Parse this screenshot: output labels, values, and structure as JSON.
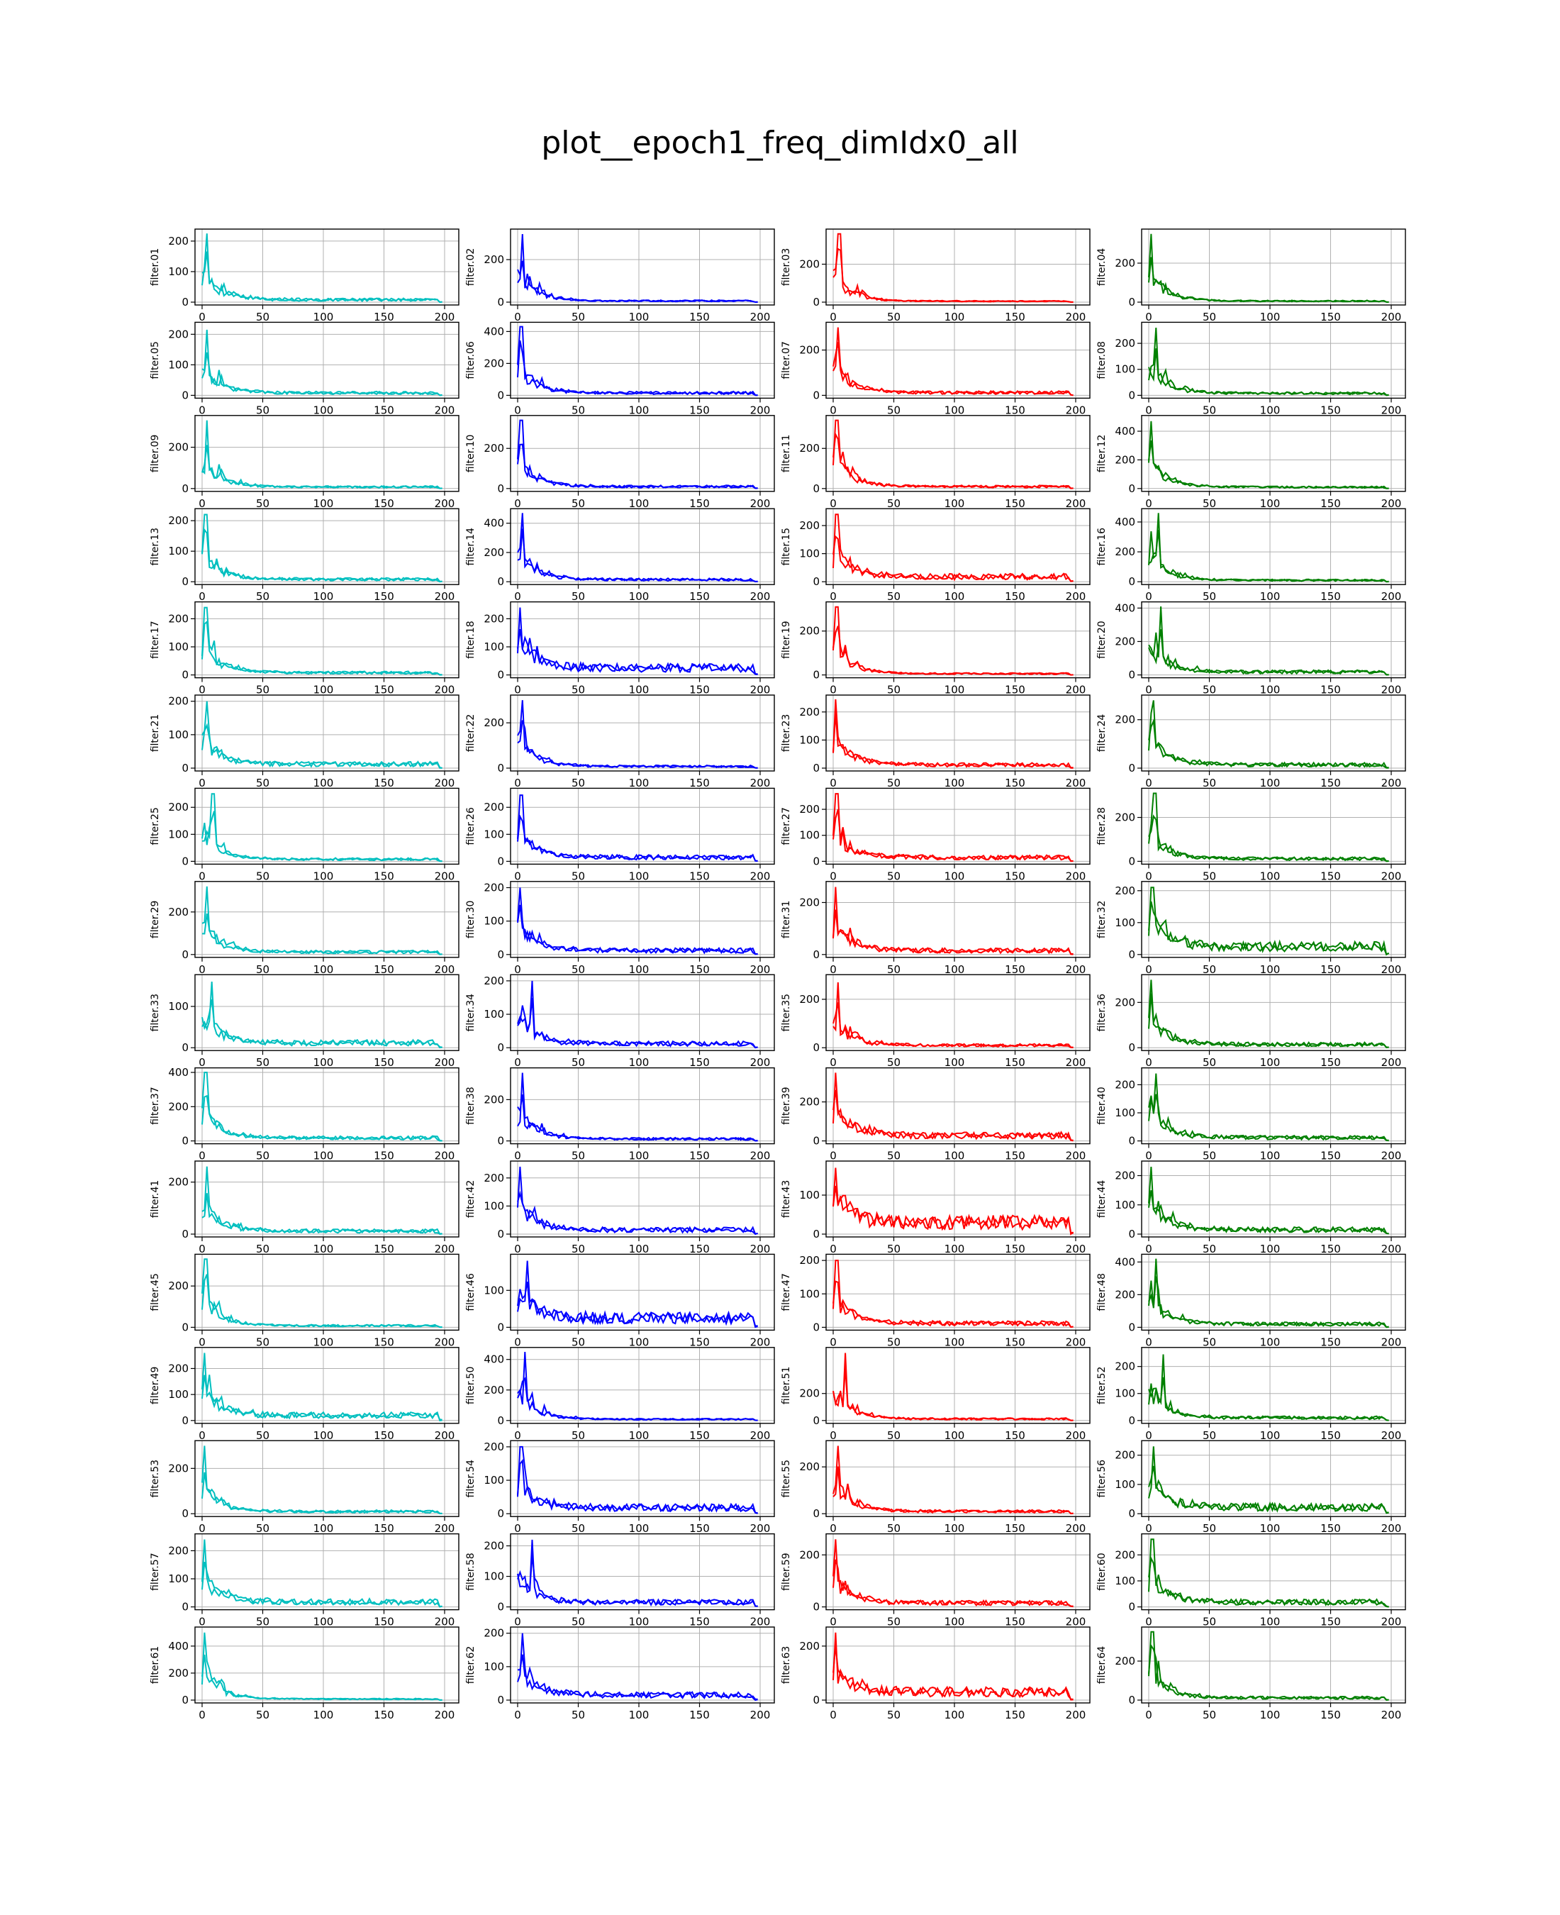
{
  "title": "plot__epoch1_freq_dimIdx0_all",
  "chart_data": {
    "type": "line",
    "title": "plot__epoch1_freq_dimIdx0_all",
    "x_range": [
      0,
      200
    ],
    "x_ticks": [
      0,
      50,
      100,
      150,
      200
    ],
    "grid": true,
    "layout": "16 rows x 4 columns",
    "column_colors": [
      "#00bfbf",
      "#0000ff",
      "#ff0000",
      "#008000"
    ],
    "series_per_panel": 2,
    "panels": [
      {
        "label": "filter.01",
        "ylim": [
          0,
          230
        ],
        "yticks": [
          0,
          100,
          200
        ],
        "peak": 225,
        "peak_at": 4,
        "tail": 8
      },
      {
        "label": "filter.02",
        "ylim": [
          0,
          330
        ],
        "yticks": [
          0,
          200
        ],
        "peak": 320,
        "peak_at": 4,
        "tail": 6
      },
      {
        "label": "filter.03",
        "ylim": [
          0,
          370
        ],
        "yticks": [
          0,
          200
        ],
        "peak": 360,
        "peak_at": 5,
        "tail": 5
      },
      {
        "label": "filter.04",
        "ylim": [
          0,
          360
        ],
        "yticks": [
          0,
          200
        ],
        "peak": 350,
        "peak_at": 2,
        "tail": 6
      },
      {
        "label": "filter.05",
        "ylim": [
          0,
          230
        ],
        "yticks": [
          0,
          100,
          200
        ],
        "peak": 215,
        "peak_at": 4,
        "tail": 8
      },
      {
        "label": "filter.06",
        "ylim": [
          0,
          440
        ],
        "yticks": [
          0,
          200,
          400
        ],
        "peak": 430,
        "peak_at": 3,
        "tail": 15
      },
      {
        "label": "filter.07",
        "ylim": [
          0,
          310
        ],
        "yticks": [
          0,
          200
        ],
        "peak": 300,
        "peak_at": 4,
        "tail": 12
      },
      {
        "label": "filter.08",
        "ylim": [
          0,
          270
        ],
        "yticks": [
          0,
          100,
          200
        ],
        "peak": 260,
        "peak_at": 6,
        "tail": 8
      },
      {
        "label": "filter.09",
        "ylim": [
          0,
          340
        ],
        "yticks": [
          0,
          200
        ],
        "peak": 330,
        "peak_at": 4,
        "tail": 8
      },
      {
        "label": "filter.10",
        "ylim": [
          0,
          350
        ],
        "yticks": [
          0,
          200
        ],
        "peak": 340,
        "peak_at": 3,
        "tail": 10
      },
      {
        "label": "filter.11",
        "ylim": [
          0,
          350
        ],
        "yticks": [
          0,
          200
        ],
        "peak": 340,
        "peak_at": 3,
        "tail": 10
      },
      {
        "label": "filter.12",
        "ylim": [
          0,
          490
        ],
        "yticks": [
          0,
          200,
          400
        ],
        "peak": 470,
        "peak_at": 2,
        "tail": 10
      },
      {
        "label": "filter.13",
        "ylim": [
          0,
          230
        ],
        "yticks": [
          0,
          100,
          200
        ],
        "peak": 220,
        "peak_at": 3,
        "tail": 8
      },
      {
        "label": "filter.14",
        "ylim": [
          0,
          480
        ],
        "yticks": [
          0,
          200,
          400
        ],
        "peak": 470,
        "peak_at": 4,
        "tail": 15
      },
      {
        "label": "filter.15",
        "ylim": [
          0,
          250
        ],
        "yticks": [
          0,
          100,
          200
        ],
        "peak": 240,
        "peak_at": 3,
        "tail": 18
      },
      {
        "label": "filter.16",
        "ylim": [
          0,
          470
        ],
        "yticks": [
          0,
          200,
          400
        ],
        "peak": 460,
        "peak_at": 8,
        "tail": 10
      },
      {
        "label": "filter.17",
        "ylim": [
          0,
          250
        ],
        "yticks": [
          0,
          100,
          200
        ],
        "peak": 240,
        "peak_at": 3,
        "tail": 8
      },
      {
        "label": "filter.18",
        "ylim": [
          0,
          250
        ],
        "yticks": [
          0,
          100,
          200
        ],
        "peak": 240,
        "peak_at": 2,
        "tail": 25
      },
      {
        "label": "filter.19",
        "ylim": [
          0,
          320
        ],
        "yticks": [
          0,
          200
        ],
        "peak": 310,
        "peak_at": 3,
        "tail": 6
      },
      {
        "label": "filter.20",
        "ylim": [
          0,
          420
        ],
        "yticks": [
          0,
          200,
          400
        ],
        "peak": 410,
        "peak_at": 10,
        "tail": 18
      },
      {
        "label": "filter.21",
        "ylim": [
          0,
          210
        ],
        "yticks": [
          0,
          100,
          200
        ],
        "peak": 200,
        "peak_at": 4,
        "tail": 12
      },
      {
        "label": "filter.22",
        "ylim": [
          0,
          310
        ],
        "yticks": [
          0,
          200
        ],
        "peak": 300,
        "peak_at": 4,
        "tail": 8
      },
      {
        "label": "filter.23",
        "ylim": [
          0,
          250
        ],
        "yticks": [
          0,
          100,
          200
        ],
        "peak": 245,
        "peak_at": 2,
        "tail": 12
      },
      {
        "label": "filter.24",
        "ylim": [
          0,
          290
        ],
        "yticks": [
          0,
          200
        ],
        "peak": 280,
        "peak_at": 4,
        "tail": 14
      },
      {
        "label": "filter.25",
        "ylim": [
          0,
          260
        ],
        "yticks": [
          0,
          100,
          200
        ],
        "peak": 250,
        "peak_at": 9,
        "tail": 8
      },
      {
        "label": "filter.26",
        "ylim": [
          0,
          260
        ],
        "yticks": [
          0,
          100,
          200
        ],
        "peak": 245,
        "peak_at": 3,
        "tail": 15
      },
      {
        "label": "filter.27",
        "ylim": [
          0,
          270
        ],
        "yticks": [
          0,
          100,
          200
        ],
        "peak": 260,
        "peak_at": 3,
        "tail": 15
      },
      {
        "label": "filter.28",
        "ylim": [
          0,
          320
        ],
        "yticks": [
          0,
          200
        ],
        "peak": 310,
        "peak_at": 5,
        "tail": 12
      },
      {
        "label": "filter.29",
        "ylim": [
          0,
          330
        ],
        "yticks": [
          0,
          200
        ],
        "peak": 320,
        "peak_at": 4,
        "tail": 12
      },
      {
        "label": "filter.30",
        "ylim": [
          0,
          210
        ],
        "yticks": [
          0,
          100,
          200
        ],
        "peak": 200,
        "peak_at": 2,
        "tail": 12
      },
      {
        "label": "filter.31",
        "ylim": [
          0,
          270
        ],
        "yticks": [
          0,
          200
        ],
        "peak": 260,
        "peak_at": 2,
        "tail": 15
      },
      {
        "label": "filter.32",
        "ylim": [
          0,
          220
        ],
        "yticks": [
          0,
          100,
          200
        ],
        "peak": 210,
        "peak_at": 3,
        "tail": 25
      },
      {
        "label": "filter.33",
        "ylim": [
          0,
          170
        ],
        "yticks": [
          0,
          100
        ],
        "peak": 160,
        "peak_at": 8,
        "tail": 12
      },
      {
        "label": "filter.34",
        "ylim": [
          0,
          210
        ],
        "yticks": [
          0,
          100,
          200
        ],
        "peak": 200,
        "peak_at": 12,
        "tail": 12
      },
      {
        "label": "filter.35",
        "ylim": [
          0,
          290
        ],
        "yticks": [
          0,
          200
        ],
        "peak": 270,
        "peak_at": 4,
        "tail": 10
      },
      {
        "label": "filter.36",
        "ylim": [
          0,
          310
        ],
        "yticks": [
          0,
          200
        ],
        "peak": 300,
        "peak_at": 2,
        "tail": 15
      },
      {
        "label": "filter.37",
        "ylim": [
          0,
          410
        ],
        "yticks": [
          0,
          200,
          400
        ],
        "peak": 400,
        "peak_at": 3,
        "tail": 18
      },
      {
        "label": "filter.38",
        "ylim": [
          0,
          340
        ],
        "yticks": [
          0,
          200
        ],
        "peak": 330,
        "peak_at": 4,
        "tail": 10
      },
      {
        "label": "filter.39",
        "ylim": [
          0,
          360
        ],
        "yticks": [
          0,
          200
        ],
        "peak": 350,
        "peak_at": 2,
        "tail": 28
      },
      {
        "label": "filter.40",
        "ylim": [
          0,
          250
        ],
        "yticks": [
          0,
          100,
          200
        ],
        "peak": 240,
        "peak_at": 6,
        "tail": 12
      },
      {
        "label": "filter.41",
        "ylim": [
          0,
          270
        ],
        "yticks": [
          0,
          200
        ],
        "peak": 260,
        "peak_at": 4,
        "tail": 12
      },
      {
        "label": "filter.42",
        "ylim": [
          0,
          250
        ],
        "yticks": [
          0,
          100,
          200
        ],
        "peak": 240,
        "peak_at": 2,
        "tail": 15
      },
      {
        "label": "filter.43",
        "ylim": [
          0,
          180
        ],
        "yticks": [
          0,
          100
        ],
        "peak": 170,
        "peak_at": 2,
        "tail": 30
      },
      {
        "label": "filter.44",
        "ylim": [
          0,
          240
        ],
        "yticks": [
          0,
          100,
          200
        ],
        "peak": 230,
        "peak_at": 2,
        "tail": 15
      },
      {
        "label": "filter.45",
        "ylim": [
          0,
          340
        ],
        "yticks": [
          0,
          200
        ],
        "peak": 330,
        "peak_at": 3,
        "tail": 8
      },
      {
        "label": "filter.46",
        "ylim": [
          0,
          190
        ],
        "yticks": [
          0,
          100
        ],
        "peak": 180,
        "peak_at": 8,
        "tail": 25
      },
      {
        "label": "filter.47",
        "ylim": [
          0,
          210
        ],
        "yticks": [
          0,
          100,
          200
        ],
        "peak": 200,
        "peak_at": 3,
        "tail": 12
      },
      {
        "label": "filter.48",
        "ylim": [
          0,
          430
        ],
        "yticks": [
          0,
          200,
          400
        ],
        "peak": 420,
        "peak_at": 6,
        "tail": 20
      },
      {
        "label": "filter.49",
        "ylim": [
          0,
          270
        ],
        "yticks": [
          0,
          100,
          200
        ],
        "peak": 260,
        "peak_at": 2,
        "tail": 20
      },
      {
        "label": "filter.50",
        "ylim": [
          0,
          460
        ],
        "yticks": [
          0,
          200,
          400
        ],
        "peak": 450,
        "peak_at": 6,
        "tail": 8
      },
      {
        "label": "filter.51",
        "ylim": [
          0,
          520
        ],
        "yticks": [
          0,
          200
        ],
        "peak": 500,
        "peak_at": 10,
        "tail": 12
      },
      {
        "label": "filter.52",
        "ylim": [
          0,
          260
        ],
        "yticks": [
          0,
          100,
          200
        ],
        "peak": 245,
        "peak_at": 12,
        "tail": 10
      },
      {
        "label": "filter.53",
        "ylim": [
          0,
          310
        ],
        "yticks": [
          0,
          200
        ],
        "peak": 300,
        "peak_at": 2,
        "tail": 10
      },
      {
        "label": "filter.54",
        "ylim": [
          0,
          210
        ],
        "yticks": [
          0,
          100,
          200
        ],
        "peak": 200,
        "peak_at": 3,
        "tail": 18
      },
      {
        "label": "filter.55",
        "ylim": [
          0,
          300
        ],
        "yticks": [
          0,
          200
        ],
        "peak": 290,
        "peak_at": 4,
        "tail": 10
      },
      {
        "label": "filter.56",
        "ylim": [
          0,
          240
        ],
        "yticks": [
          0,
          100,
          200
        ],
        "peak": 230,
        "peak_at": 4,
        "tail": 22
      },
      {
        "label": "filter.57",
        "ylim": [
          0,
          250
        ],
        "yticks": [
          0,
          100,
          200
        ],
        "peak": 240,
        "peak_at": 2,
        "tail": 18
      },
      {
        "label": "filter.58",
        "ylim": [
          0,
          230
        ],
        "yticks": [
          0,
          100,
          200
        ],
        "peak": 220,
        "peak_at": 12,
        "tail": 15
      },
      {
        "label": "filter.59",
        "ylim": [
          0,
          270
        ],
        "yticks": [
          0,
          200
        ],
        "peak": 260,
        "peak_at": 2,
        "tail": 15
      },
      {
        "label": "filter.60",
        "ylim": [
          0,
          270
        ],
        "yticks": [
          0,
          100,
          200
        ],
        "peak": 260,
        "peak_at": 3,
        "tail": 18
      },
      {
        "label": "filter.61",
        "ylim": [
          0,
          520
        ],
        "yticks": [
          0,
          200,
          400
        ],
        "peak": 500,
        "peak_at": 2,
        "tail": 8
      },
      {
        "label": "filter.62",
        "ylim": [
          0,
          210
        ],
        "yticks": [
          0,
          100,
          200
        ],
        "peak": 200,
        "peak_at": 4,
        "tail": 15
      },
      {
        "label": "filter.63",
        "ylim": [
          0,
          260
        ],
        "yticks": [
          0,
          200
        ],
        "peak": 250,
        "peak_at": 2,
        "tail": 30
      },
      {
        "label": "filter.64",
        "ylim": [
          0,
          360
        ],
        "yticks": [
          0,
          200
        ],
        "peak": 350,
        "peak_at": 3,
        "tail": 12
      }
    ]
  }
}
